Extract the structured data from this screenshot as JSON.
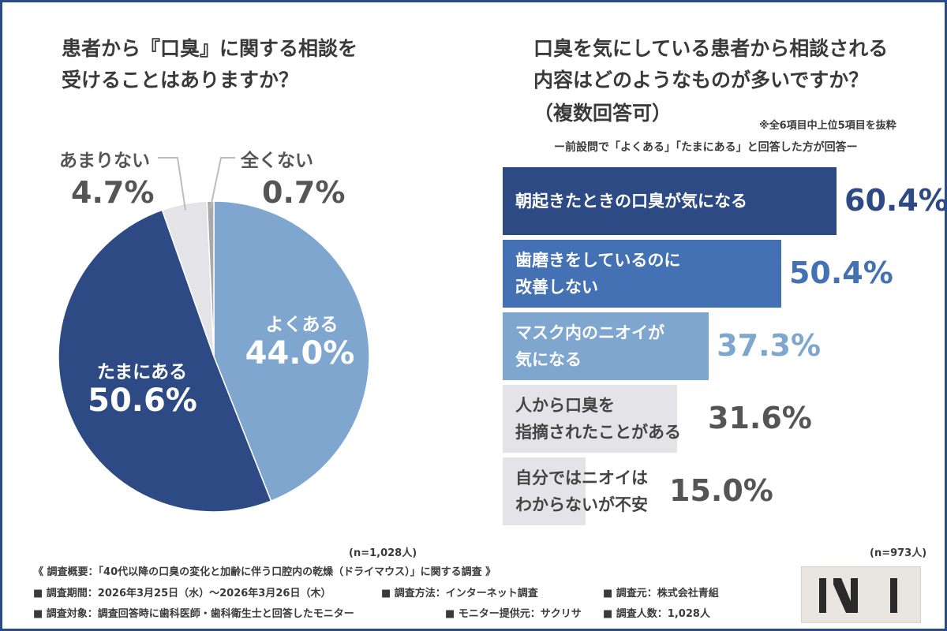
{
  "left": {
    "title_line1": "患者から『口臭』に関する相談を",
    "title_line2": "受けることはありますか？",
    "n_note": "(n=1,028人)"
  },
  "right": {
    "title_line1": "口臭を気にしている患者から相談される",
    "title_line2": "内容はどのようなものが多いですか？",
    "title_line3": "（複数回答可）",
    "note_top5": "※全6項目中上位5項目を抜粋",
    "note_condition": "ー前設問で「よくある」「たまにある」と回答した方が回答ー",
    "n_note": "(n=973人)"
  },
  "chart_data": [
    {
      "type": "pie",
      "slices": [
        {
          "label": "よくある",
          "value": 44.0,
          "display": "44.0%",
          "color": "#7fa6cf"
        },
        {
          "label": "たまにある",
          "value": 50.6,
          "display": "50.6%",
          "color": "#2d4a85"
        },
        {
          "label": "あまりない",
          "value": 4.7,
          "display": "4.7%",
          "color": "#e4e4e8"
        },
        {
          "label": "全くない",
          "value": 0.7,
          "display": "0.7%",
          "color": "#a9a9a9"
        }
      ]
    },
    {
      "type": "bar",
      "orientation": "horizontal",
      "categories": [
        [
          "朝起きたときの口臭が気になる"
        ],
        [
          "歯磨きをしているのに",
          "改善しない"
        ],
        [
          "マスク内のニオイが",
          "気になる"
        ],
        [
          "人から口臭を",
          "指摘されたことがある"
        ],
        [
          "自分ではニオイは",
          "わからないが不安"
        ]
      ],
      "values": [
        60.4,
        50.4,
        37.3,
        31.6,
        15.0
      ],
      "value_labels": [
        "60.4%",
        "50.4%",
        "37.3%",
        "31.6%",
        "15.0%"
      ],
      "bar_colors": [
        "#2d4a85",
        "#4471b3",
        "#7fa6cf",
        "#e4e4e8",
        "#e4e4e8"
      ],
      "value_colors": [
        "#2d4a85",
        "#4471b3",
        "#7fa6cf",
        "#555555",
        "#555555"
      ],
      "label_colors": [
        "#ffffff",
        "#ffffff",
        "#ffffff",
        "#444444",
        "#444444"
      ]
    }
  ],
  "footer": {
    "summary": "《 調査概要：「40代以降の口臭の変化と加齢に伴う口腔内の乾燥（ドライマウス）」に関する調査 》",
    "period": "■ 調査期間：2026年3月25日（水）～2026年3月26日（木）",
    "method": "■ 調査方法：インターネット調査",
    "source": "■ 調査元：株式会社青組",
    "target": "■ 調査対象：調査回答時に歯科医師・歯科衛生士と回答したモニター",
    "provider": "■ モニター提供元：サクリサ",
    "count": "■ 調査人数：1,028人"
  }
}
